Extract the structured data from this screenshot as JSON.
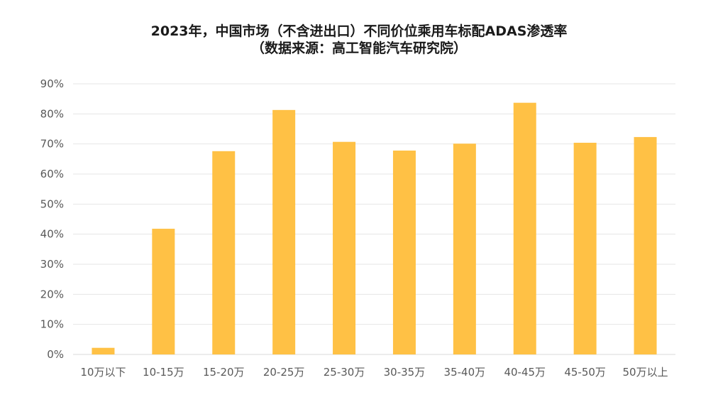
{
  "chart_data": {
    "type": "bar",
    "title": "2023年，中国市场（不含进出口）不同价位乘用车标配ADAS渗透率",
    "subtitle": "（数据来源：高工智能汽车研究院）",
    "categories": [
      "10万以下",
      "10-15万",
      "15-20万",
      "20-25万",
      "25-30万",
      "30-35万",
      "35-40万",
      "40-45万",
      "45-50万",
      "50万以上"
    ],
    "values": [
      2.2,
      41.8,
      67.6,
      81.3,
      70.7,
      67.8,
      70.1,
      83.7,
      70.4,
      72.3
    ],
    "y_ticks": [
      "0%",
      "10%",
      "20%",
      "30%",
      "40%",
      "50%",
      "60%",
      "70%",
      "80%",
      "90%"
    ],
    "ylim": [
      0,
      90
    ],
    "xlabel": "",
    "ylabel": "",
    "grid": true,
    "bar_color": "#FFC145",
    "grid_color": "#E6E6E6"
  }
}
